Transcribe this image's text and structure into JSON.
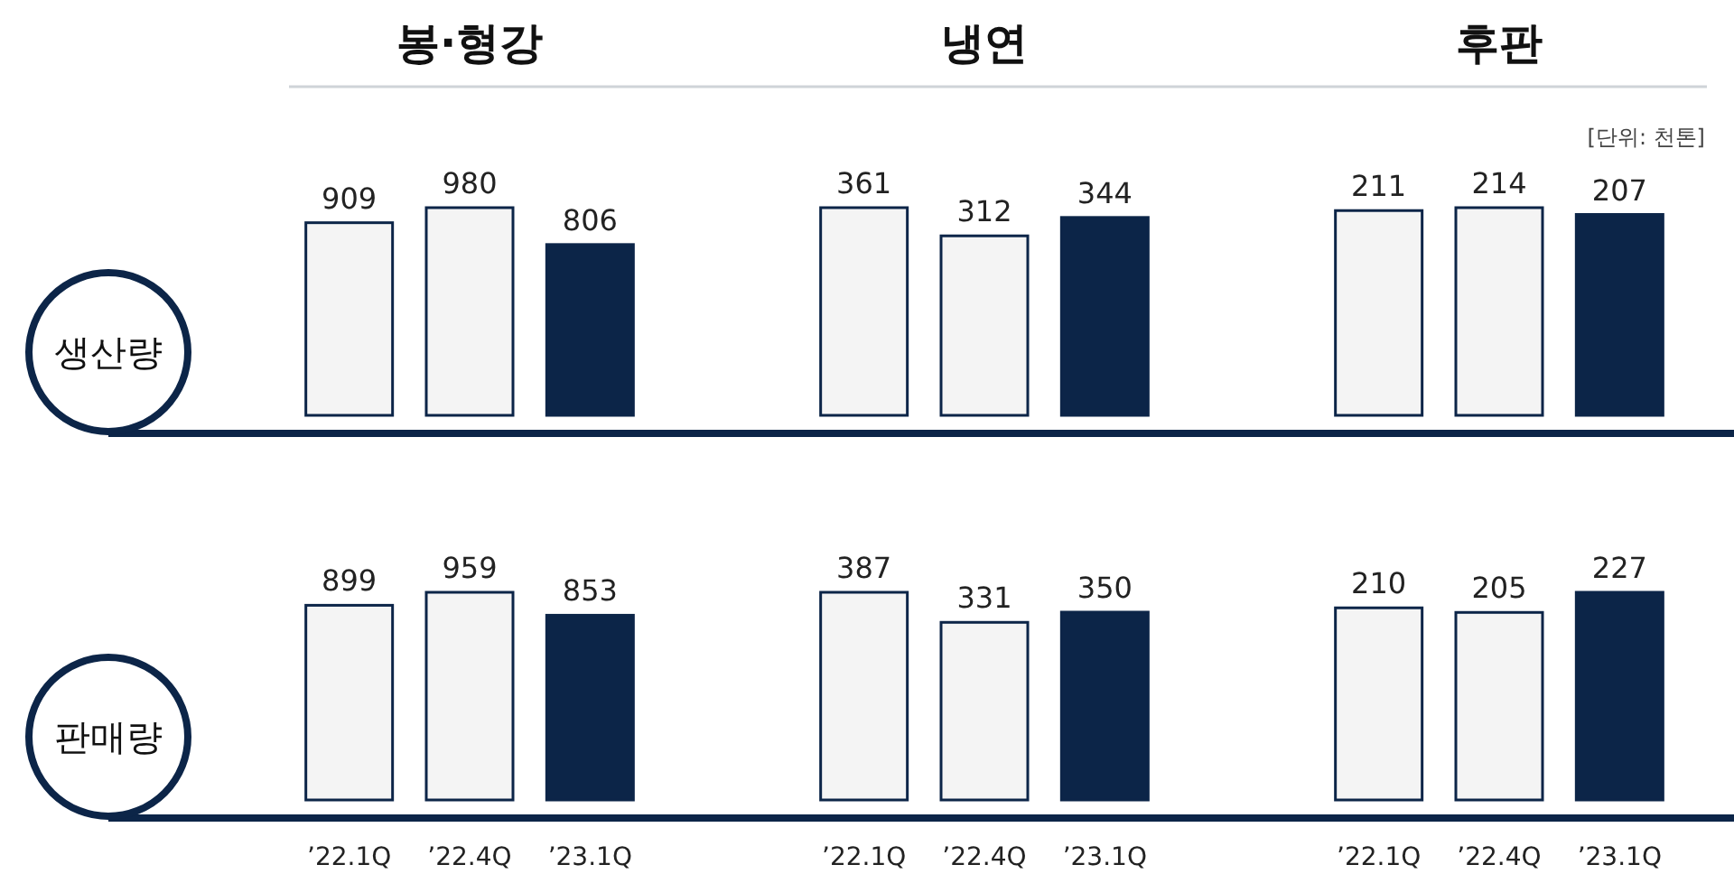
{
  "chart_data": [
    {
      "type": "bar",
      "title": "봉·형강",
      "ylabel": "생산량",
      "categories": [
        null,
        null,
        null
      ],
      "values": [
        909,
        980,
        806
      ],
      "colors": [
        "#f4f4f4",
        "#f4f4f4",
        "#0c2548"
      ],
      "data_labels": true
    },
    {
      "type": "bar",
      "title": "냉연",
      "categories": [
        null,
        null,
        null
      ],
      "values": [
        361,
        312,
        344
      ],
      "colors": [
        "#f4f4f4",
        "#f4f4f4",
        "#0c2548"
      ],
      "data_labels": true
    },
    {
      "type": "bar",
      "title": "후판",
      "annotations": [
        "[단위: 천톤]"
      ],
      "categories": [
        null,
        null,
        null
      ],
      "values": [
        211,
        214,
        207
      ],
      "colors": [
        "#f4f4f4",
        "#f4f4f4",
        "#0c2548"
      ],
      "data_labels": true
    },
    {
      "type": "bar",
      "ylabel": "판매량",
      "categories": [
        "’22.1Q",
        "’22.4Q",
        "’23.1Q"
      ],
      "values": [
        899,
        959,
        853
      ],
      "colors": [
        "#f4f4f4",
        "#f4f4f4",
        "#0c2548"
      ],
      "data_labels": true,
      "tick_labels": "x"
    },
    {
      "type": "bar",
      "categories": [
        "’22.1Q",
        "’22.4Q",
        "’23.1Q"
      ],
      "values": [
        387,
        331,
        350
      ],
      "colors": [
        "#f4f4f4",
        "#f4f4f4",
        "#0c2548"
      ],
      "data_labels": true,
      "tick_labels": "x"
    },
    {
      "type": "bar",
      "categories": [
        "’22.1Q",
        "’22.4Q",
        "’23.1Q"
      ],
      "values": [
        210,
        205,
        227
      ],
      "colors": [
        "#f4f4f4",
        "#f4f4f4",
        "#0c2548"
      ],
      "data_labels": true,
      "tick_labels": "x"
    }
  ]
}
